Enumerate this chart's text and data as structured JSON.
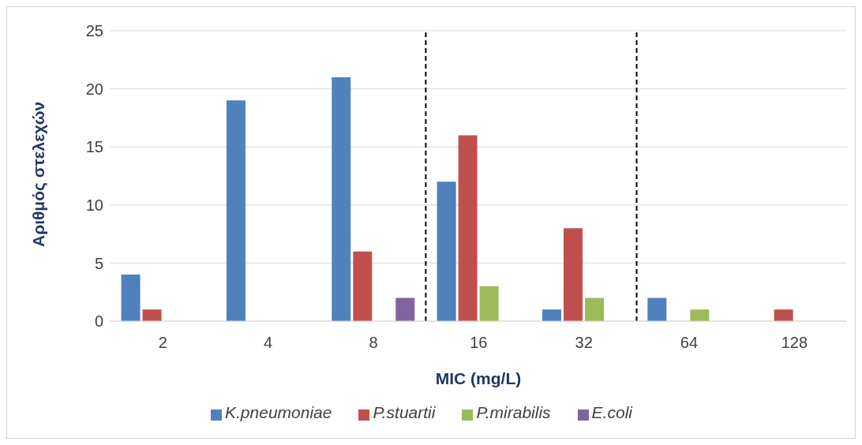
{
  "chart_data": {
    "type": "bar",
    "xlabel": "MIC (mg/L)",
    "ylabel": "Αριθμός στελεχών",
    "x": [
      2,
      4,
      8,
      16,
      32,
      64,
      128
    ],
    "series": [
      {
        "name": "K.pneumoniae",
        "color": "#4f81bd",
        "values": [
          4,
          19,
          21,
          12,
          1,
          2,
          0
        ]
      },
      {
        "name": "P.stuartii",
        "color": "#c0504d",
        "values": [
          1,
          0,
          6,
          16,
          8,
          0,
          1
        ]
      },
      {
        "name": "P.mirabilis",
        "color": "#9bbb59",
        "values": [
          0,
          0,
          0,
          3,
          2,
          1,
          0
        ]
      },
      {
        "name": "E.coli",
        "color": "#8064a2",
        "values": [
          0,
          0,
          2,
          0,
          0,
          0,
          0
        ]
      }
    ],
    "log": "x",
    "xlim": [
      1.41,
      181
    ],
    "xticks": [
      2,
      4,
      8,
      16,
      32,
      64,
      128
    ],
    "ylim": [
      0,
      25
    ],
    "yticks": [
      0,
      5,
      10,
      15,
      20,
      25
    ],
    "grid": "y",
    "legend": "bottom",
    "ref_lines": [
      {
        "axis": "x",
        "value": 11.3,
        "line_style": "dashed",
        "color": "#000000"
      },
      {
        "axis": "x",
        "value": 45.3,
        "line_style": "dashed",
        "color": "#000000"
      }
    ]
  }
}
